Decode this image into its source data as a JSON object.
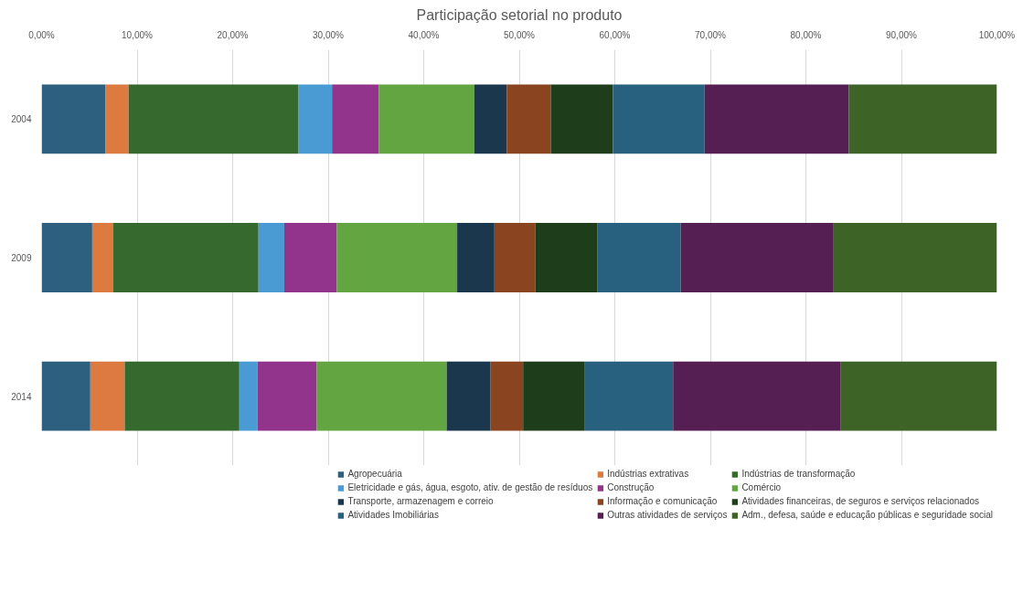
{
  "chart_data": {
    "type": "bar",
    "orientation": "horizontal",
    "stacked": true,
    "title": "Participação setorial no produto",
    "categories": [
      "2004",
      "2009",
      "2014"
    ],
    "series": [
      {
        "name": "Agropecuária",
        "color": "#2d5f7f",
        "values": [
          6.7,
          5.3,
          5.1
        ]
      },
      {
        "name": "Indústrias extrativas",
        "color": "#dc7a40",
        "values": [
          2.4,
          2.2,
          3.6
        ]
      },
      {
        "name": "Indústrias de transformação",
        "color": "#35692d",
        "values": [
          17.8,
          15.2,
          12.0
        ]
      },
      {
        "name": "Eletricidade e gás, água, esgoto, ativ. de gestão de resíduos",
        "color": "#4a9bd3",
        "values": [
          3.5,
          2.7,
          1.9
        ]
      },
      {
        "name": "Construção",
        "color": "#92338c",
        "values": [
          4.9,
          5.5,
          6.2
        ]
      },
      {
        "name": "Comércio",
        "color": "#63a541",
        "values": [
          10.0,
          12.6,
          13.6
        ]
      },
      {
        "name": "Transporte, armazenagem e correio",
        "color": "#1b374d",
        "values": [
          3.4,
          3.9,
          4.6
        ]
      },
      {
        "name": "Informação e comunicação",
        "color": "#8b4420",
        "values": [
          4.6,
          4.3,
          3.4
        ]
      },
      {
        "name": "Atividades financeiras, de seguros e serviços relacionados",
        "color": "#1e3d1b",
        "values": [
          6.5,
          6.5,
          6.4
        ]
      },
      {
        "name": "Atividades Imobiliárias",
        "color": "#28607f",
        "values": [
          9.6,
          8.7,
          9.3
        ]
      },
      {
        "name": "Outras atividades de serviços",
        "color": "#561f53",
        "values": [
          15.1,
          16.0,
          17.5
        ]
      },
      {
        "name": "Adm., defesa, saúde e educação públicas e seguridade social",
        "color": "#3e6326",
        "values": [
          15.5,
          17.1,
          16.4
        ]
      }
    ],
    "xlim": [
      0,
      100
    ],
    "xticks": [
      {
        "value": 0,
        "label": "0,00%"
      },
      {
        "value": 10,
        "label": "10,00%"
      },
      {
        "value": 20,
        "label": "20,00%"
      },
      {
        "value": 30,
        "label": "30,00%"
      },
      {
        "value": 40,
        "label": "40,00%"
      },
      {
        "value": 50,
        "label": "50,00%"
      },
      {
        "value": 60,
        "label": "60,00%"
      },
      {
        "value": 70,
        "label": "70,00%"
      },
      {
        "value": 80,
        "label": "80,00%"
      },
      {
        "value": 90,
        "label": "90,00%"
      },
      {
        "value": 100,
        "label": "100,00%"
      }
    ],
    "grid": "x",
    "legend": "bottom"
  }
}
